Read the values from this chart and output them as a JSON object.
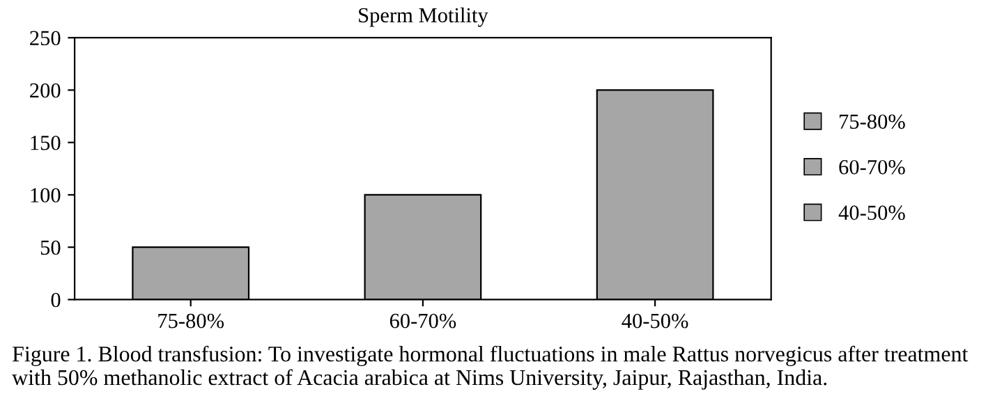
{
  "chart_data": {
    "type": "bar",
    "title": "Sperm Motility",
    "categories": [
      "75-80%",
      "60-70%",
      "40-50%"
    ],
    "series": [
      {
        "name": "75-80%",
        "color": "#a6a6a6",
        "values": [
          50,
          null,
          null
        ]
      },
      {
        "name": "60-70%",
        "color": "#a6a6a6",
        "values": [
          null,
          100,
          null
        ]
      },
      {
        "name": "40-50%",
        "color": "#a6a6a6",
        "values": [
          null,
          null,
          200
        ]
      }
    ],
    "ylim": [
      0,
      250
    ],
    "yticks": [
      0,
      50,
      100,
      150,
      200,
      250
    ],
    "grid": false,
    "legend": "right",
    "annotations": [
      "Figure 1. Blood transfusion: To investigate hormonal fluctuations in male Rattus norvegicus after treatment with 50% methanolic extract of Acacia arabica at Nims University, Jaipur, Rajasthan, India."
    ]
  }
}
